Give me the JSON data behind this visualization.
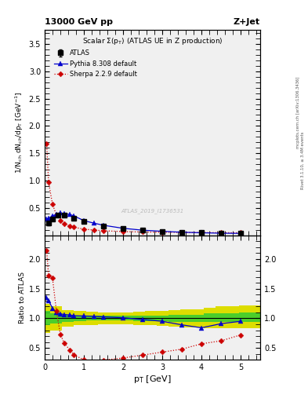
{
  "title_left": "13000 GeV pp",
  "title_right": "Z+Jet",
  "plot_title": "Scalar Σ(p_T) (ATLAS UE in Z production)",
  "watermark": "ATLAS_2019_I1736531",
  "right_label_top": "Rivet 3.1.10, ≥ 3.4M events",
  "right_label_bot": "mcplots.cern.ch [arXiv:1306.3436]",
  "ylabel_main": "1/N_{ch} dN_{ch}/dp_T [GeV^{-1}]",
  "ylabel_ratio": "Ratio to ATLAS",
  "xlabel": "p_T [GeV]",
  "atlas_x": [
    0.1,
    0.2,
    0.35,
    0.5,
    0.75,
    1.0,
    1.5,
    2.0,
    2.5,
    3.0,
    3.5,
    4.0,
    4.5,
    5.0
  ],
  "atlas_y": [
    0.22,
    0.305,
    0.375,
    0.375,
    0.31,
    0.25,
    0.175,
    0.125,
    0.095,
    0.075,
    0.06,
    0.05,
    0.042,
    0.038
  ],
  "atlas_yerr_lo": [
    0.03,
    0.025,
    0.025,
    0.02,
    0.015,
    0.013,
    0.01,
    0.008,
    0.007,
    0.006,
    0.005,
    0.004,
    0.004,
    0.003
  ],
  "atlas_yerr_hi": [
    0.03,
    0.025,
    0.025,
    0.02,
    0.015,
    0.013,
    0.01,
    0.008,
    0.007,
    0.006,
    0.005,
    0.004,
    0.004,
    0.003
  ],
  "pythia_x": [
    0.05,
    0.1,
    0.2,
    0.3,
    0.4,
    0.5,
    0.65,
    0.75,
    1.0,
    1.25,
    1.5,
    2.0,
    2.5,
    3.0,
    3.5,
    4.0,
    4.5,
    5.0
  ],
  "pythia_y": [
    0.295,
    0.315,
    0.355,
    0.39,
    0.41,
    0.4,
    0.38,
    0.355,
    0.27,
    0.225,
    0.185,
    0.13,
    0.095,
    0.075,
    0.058,
    0.048,
    0.04,
    0.037
  ],
  "sherpa_x": [
    0.05,
    0.1,
    0.2,
    0.3,
    0.4,
    0.5,
    0.65,
    0.75,
    1.0,
    1.25,
    1.5,
    2.0,
    2.5,
    3.0,
    3.5,
    4.0,
    4.5,
    5.0
  ],
  "sherpa_y": [
    1.68,
    0.97,
    0.57,
    0.37,
    0.265,
    0.215,
    0.168,
    0.148,
    0.115,
    0.098,
    0.085,
    0.07,
    0.062,
    0.058,
    0.054,
    0.052,
    0.05,
    0.048
  ],
  "pythia_ratio_x": [
    0.05,
    0.1,
    0.2,
    0.3,
    0.4,
    0.5,
    0.65,
    0.75,
    1.0,
    1.25,
    1.5,
    2.0,
    2.5,
    3.0,
    3.5,
    4.0,
    4.5,
    5.0
  ],
  "pythia_ratio_y": [
    1.35,
    1.3,
    1.17,
    1.1,
    1.075,
    1.065,
    1.055,
    1.045,
    1.04,
    1.035,
    1.025,
    1.01,
    0.98,
    0.95,
    0.89,
    0.84,
    0.91,
    0.95
  ],
  "sherpa_ratio_x": [
    0.05,
    0.1,
    0.2,
    0.3,
    0.4,
    0.5,
    0.65,
    0.75,
    1.0,
    1.25,
    1.5,
    2.0,
    2.5,
    3.0,
    3.5,
    4.0,
    4.5,
    5.0
  ],
  "sherpa_ratio_y": [
    2.15,
    1.72,
    1.68,
    1.12,
    0.73,
    0.58,
    0.46,
    0.38,
    0.3,
    0.27,
    0.295,
    0.33,
    0.38,
    0.43,
    0.48,
    0.57,
    0.62,
    0.72
  ],
  "band_x": [
    0.0,
    0.3,
    0.6,
    0.9,
    1.2,
    1.5,
    1.8,
    2.1,
    2.4,
    2.7,
    3.0,
    3.3,
    3.6,
    3.9,
    4.2,
    4.5,
    4.8,
    5.1,
    5.5
  ],
  "band_green_lo": [
    0.88,
    0.91,
    0.94,
    0.95,
    0.96,
    0.96,
    0.96,
    0.96,
    0.95,
    0.95,
    0.95,
    0.94,
    0.94,
    0.94,
    0.94,
    0.94,
    0.94,
    0.94,
    0.94
  ],
  "band_green_hi": [
    1.12,
    1.09,
    1.06,
    1.05,
    1.04,
    1.04,
    1.04,
    1.04,
    1.05,
    1.05,
    1.05,
    1.06,
    1.06,
    1.06,
    1.08,
    1.09,
    1.09,
    1.1,
    1.1
  ],
  "band_yellow_lo": [
    0.76,
    0.8,
    0.86,
    0.88,
    0.89,
    0.9,
    0.9,
    0.9,
    0.89,
    0.88,
    0.87,
    0.86,
    0.85,
    0.85,
    0.84,
    0.83,
    0.83,
    0.83,
    0.83
  ],
  "band_yellow_hi": [
    1.24,
    1.2,
    1.14,
    1.12,
    1.11,
    1.1,
    1.1,
    1.1,
    1.11,
    1.12,
    1.13,
    1.14,
    1.15,
    1.15,
    1.18,
    1.2,
    1.21,
    1.22,
    1.22
  ],
  "ylim_main": [
    0.0,
    3.75
  ],
  "ylim_ratio": [
    0.3,
    2.4
  ],
  "xlim": [
    0.0,
    5.5
  ],
  "color_atlas": "#000000",
  "color_pythia": "#0000cc",
  "color_sherpa": "#cc0000",
  "color_green": "#33cc33",
  "color_yellow": "#dddd00",
  "color_watermark": "#bbbbbb",
  "bg_color": "#f0f0f0"
}
